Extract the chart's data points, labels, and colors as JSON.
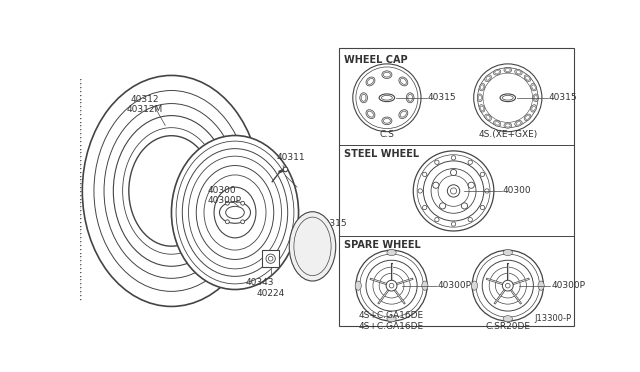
{
  "bg_color": "#ffffff",
  "line_color": "#444444",
  "text_color": "#333333",
  "part_numbers": {
    "tire": "40312\n40312M",
    "valve": "40311",
    "wheel_rim": "40300\n40300P",
    "hub_nut": "40343",
    "wheel_cap_part": "40315",
    "wheel_cap_part2": "40315",
    "center_bore": "40224",
    "steel_wheel": "40300",
    "spare_left": "40300P",
    "spare_right": "40300P"
  },
  "section_labels": {
    "wheel_cap": "WHEEL CAP",
    "steel_wheel": "STEEL WHEEL",
    "spare_wheel": "SPARE WHEEL"
  },
  "sub_labels": {
    "cs": "C.S",
    "xe_gxe": "4S.(XE+GXE)",
    "ga16de": "4S+C.GA16DE",
    "sr20de": "C.SR20DE"
  },
  "diagram_ref": "J13300-P"
}
